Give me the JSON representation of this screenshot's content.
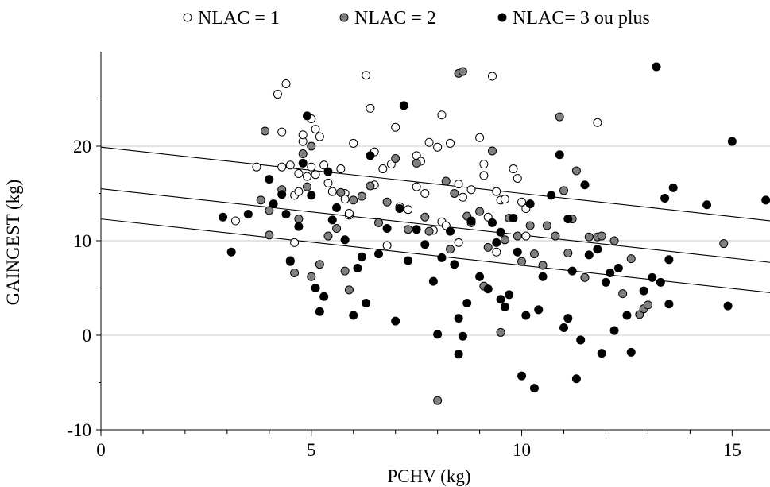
{
  "chart_data": {
    "type": "scatter",
    "title": "",
    "xlabel": "PCHV (kg)",
    "ylabel": "GAINGEST (kg)",
    "xlim": [
      0,
      15.9
    ],
    "ylim": [
      -10,
      30
    ],
    "xticks": [
      0,
      5,
      10,
      15
    ],
    "yticks": [
      -10,
      0,
      10,
      20
    ],
    "grid": "horizontal",
    "legend": "top",
    "series": [
      {
        "name": "NLAC = 1",
        "marker": "open-circle",
        "color": "#ffffff",
        "points": [
          [
            3.2,
            12.1
          ],
          [
            3.7,
            17.8
          ],
          [
            4.2,
            25.5
          ],
          [
            4.3,
            21.5
          ],
          [
            4.4,
            26.6
          ],
          [
            4.3,
            17.8
          ],
          [
            4.5,
            18.0
          ],
          [
            4.6,
            14.8
          ],
          [
            4.7,
            15.2
          ],
          [
            4.7,
            17.1
          ],
          [
            4.8,
            20.5
          ],
          [
            4.8,
            21.2
          ],
          [
            5.0,
            22.9
          ],
          [
            5.1,
            21.8
          ],
          [
            5.2,
            21.0
          ],
          [
            4.9,
            16.8
          ],
          [
            5.0,
            17.8
          ],
          [
            5.1,
            17.0
          ],
          [
            5.3,
            18.0
          ],
          [
            5.4,
            16.1
          ],
          [
            5.5,
            15.2
          ],
          [
            5.7,
            17.6
          ],
          [
            5.8,
            15.0
          ],
          [
            5.8,
            14.4
          ],
          [
            5.9,
            12.7
          ],
          [
            6.0,
            20.3
          ],
          [
            6.3,
            27.5
          ],
          [
            6.4,
            24.0
          ],
          [
            6.5,
            19.4
          ],
          [
            6.5,
            15.9
          ],
          [
            6.7,
            17.6
          ],
          [
            6.9,
            18.1
          ],
          [
            7.0,
            22.0
          ],
          [
            7.1,
            13.6
          ],
          [
            7.3,
            13.3
          ],
          [
            7.5,
            15.7
          ],
          [
            7.5,
            19.0
          ],
          [
            7.6,
            18.4
          ],
          [
            7.7,
            15.0
          ],
          [
            7.8,
            20.4
          ],
          [
            8.0,
            19.9
          ],
          [
            8.1,
            23.3
          ],
          [
            8.1,
            12.0
          ],
          [
            8.2,
            11.6
          ],
          [
            8.3,
            20.3
          ],
          [
            8.5,
            16.0
          ],
          [
            8.6,
            14.6
          ],
          [
            8.8,
            15.4
          ],
          [
            9.0,
            20.9
          ],
          [
            9.1,
            16.9
          ],
          [
            9.1,
            18.1
          ],
          [
            9.3,
            27.4
          ],
          [
            9.2,
            12.5
          ],
          [
            9.4,
            15.2
          ],
          [
            9.5,
            14.3
          ],
          [
            9.6,
            14.4
          ],
          [
            9.8,
            17.6
          ],
          [
            9.9,
            16.6
          ],
          [
            10.0,
            14.1
          ],
          [
            10.1,
            13.4
          ],
          [
            10.1,
            10.5
          ],
          [
            11.8,
            22.5
          ],
          [
            4.6,
            9.8
          ],
          [
            5.9,
            12.9
          ],
          [
            6.8,
            9.5
          ],
          [
            8.5,
            9.8
          ],
          [
            9.4,
            8.8
          ],
          [
            7.9,
            11.1
          ]
        ]
      },
      {
        "name": "NLAC = 2",
        "marker": "filled-circle",
        "color": "#808080",
        "points": [
          [
            3.8,
            14.3
          ],
          [
            3.9,
            21.6
          ],
          [
            4.0,
            10.6
          ],
          [
            4.0,
            13.2
          ],
          [
            4.3,
            15.4
          ],
          [
            4.5,
            7.9
          ],
          [
            4.6,
            6.6
          ],
          [
            4.7,
            12.3
          ],
          [
            4.8,
            19.2
          ],
          [
            4.9,
            15.7
          ],
          [
            5.0,
            20.0
          ],
          [
            5.0,
            6.2
          ],
          [
            5.2,
            7.5
          ],
          [
            5.4,
            10.5
          ],
          [
            5.6,
            11.3
          ],
          [
            5.7,
            15.1
          ],
          [
            5.8,
            6.8
          ],
          [
            5.9,
            4.8
          ],
          [
            6.0,
            14.3
          ],
          [
            6.2,
            14.7
          ],
          [
            6.4,
            15.8
          ],
          [
            6.6,
            11.9
          ],
          [
            6.8,
            14.1
          ],
          [
            7.0,
            18.7
          ],
          [
            7.3,
            11.2
          ],
          [
            7.5,
            18.2
          ],
          [
            7.7,
            12.5
          ],
          [
            7.8,
            11.0
          ],
          [
            8.0,
            -6.9
          ],
          [
            8.2,
            16.3
          ],
          [
            8.4,
            15.0
          ],
          [
            8.5,
            27.7
          ],
          [
            8.6,
            27.9
          ],
          [
            8.7,
            12.6
          ],
          [
            8.8,
            11.9
          ],
          [
            9.0,
            13.1
          ],
          [
            9.1,
            5.2
          ],
          [
            9.2,
            9.3
          ],
          [
            9.3,
            19.5
          ],
          [
            9.5,
            0.3
          ],
          [
            9.6,
            10.1
          ],
          [
            9.7,
            12.4
          ],
          [
            10.0,
            7.8
          ],
          [
            10.2,
            11.6
          ],
          [
            10.3,
            8.6
          ],
          [
            10.6,
            11.6
          ],
          [
            10.8,
            10.5
          ],
          [
            10.9,
            23.1
          ],
          [
            11.0,
            15.3
          ],
          [
            11.1,
            8.7
          ],
          [
            11.2,
            12.3
          ],
          [
            11.3,
            17.4
          ],
          [
            11.5,
            6.1
          ],
          [
            11.6,
            10.4
          ],
          [
            11.8,
            10.4
          ],
          [
            11.9,
            10.5
          ],
          [
            12.2,
            10.0
          ],
          [
            12.4,
            4.4
          ],
          [
            12.6,
            8.1
          ],
          [
            12.8,
            2.2
          ],
          [
            12.9,
            2.8
          ],
          [
            13.0,
            3.2
          ],
          [
            14.8,
            9.7
          ],
          [
            10.5,
            7.4
          ],
          [
            9.9,
            10.5
          ],
          [
            8.3,
            9.1
          ]
        ]
      },
      {
        "name": "NLAC= 3 ou plus",
        "marker": "filled-circle",
        "color": "#000000",
        "points": [
          [
            2.9,
            12.5
          ],
          [
            3.1,
            8.8
          ],
          [
            3.5,
            12.8
          ],
          [
            4.0,
            16.5
          ],
          [
            4.1,
            13.9
          ],
          [
            4.3,
            14.9
          ],
          [
            4.4,
            12.8
          ],
          [
            4.5,
            7.8
          ],
          [
            4.7,
            11.5
          ],
          [
            4.8,
            18.2
          ],
          [
            4.9,
            23.2
          ],
          [
            5.0,
            14.8
          ],
          [
            5.1,
            5.0
          ],
          [
            5.2,
            2.5
          ],
          [
            5.3,
            4.1
          ],
          [
            5.4,
            17.3
          ],
          [
            5.5,
            12.2
          ],
          [
            5.6,
            13.5
          ],
          [
            5.8,
            10.1
          ],
          [
            6.0,
            2.1
          ],
          [
            6.1,
            7.1
          ],
          [
            6.2,
            8.3
          ],
          [
            6.3,
            3.4
          ],
          [
            6.4,
            19.0
          ],
          [
            6.6,
            8.6
          ],
          [
            6.8,
            11.3
          ],
          [
            7.0,
            1.5
          ],
          [
            7.1,
            13.4
          ],
          [
            7.2,
            24.3
          ],
          [
            7.3,
            7.9
          ],
          [
            7.5,
            11.2
          ],
          [
            7.7,
            9.6
          ],
          [
            7.9,
            5.7
          ],
          [
            8.0,
            0.1
          ],
          [
            8.1,
            8.2
          ],
          [
            8.3,
            11.0
          ],
          [
            8.4,
            7.5
          ],
          [
            8.5,
            1.8
          ],
          [
            8.5,
            -2.0
          ],
          [
            8.6,
            -0.1
          ],
          [
            8.7,
            3.4
          ],
          [
            8.8,
            12.1
          ],
          [
            9.0,
            6.2
          ],
          [
            9.2,
            4.9
          ],
          [
            9.3,
            11.9
          ],
          [
            9.4,
            9.8
          ],
          [
            9.5,
            10.9
          ],
          [
            9.6,
            3.0
          ],
          [
            9.7,
            4.3
          ],
          [
            9.8,
            12.4
          ],
          [
            9.9,
            8.8
          ],
          [
            10.0,
            -4.3
          ],
          [
            10.1,
            2.1
          ],
          [
            10.2,
            13.9
          ],
          [
            10.3,
            -5.6
          ],
          [
            10.5,
            6.2
          ],
          [
            10.7,
            14.8
          ],
          [
            10.9,
            19.1
          ],
          [
            11.0,
            0.8
          ],
          [
            11.1,
            1.8
          ],
          [
            11.2,
            6.8
          ],
          [
            11.3,
            -4.6
          ],
          [
            11.4,
            -0.5
          ],
          [
            11.5,
            15.9
          ],
          [
            11.6,
            8.5
          ],
          [
            11.8,
            9.1
          ],
          [
            11.9,
            -1.9
          ],
          [
            12.0,
            5.6
          ],
          [
            12.2,
            0.5
          ],
          [
            12.3,
            7.1
          ],
          [
            12.5,
            2.1
          ],
          [
            12.6,
            -1.8
          ],
          [
            12.9,
            4.7
          ],
          [
            13.1,
            6.1
          ],
          [
            13.2,
            28.4
          ],
          [
            13.3,
            5.6
          ],
          [
            13.4,
            14.5
          ],
          [
            13.5,
            8.0
          ],
          [
            13.5,
            3.3
          ],
          [
            13.6,
            15.6
          ],
          [
            14.4,
            13.8
          ],
          [
            14.9,
            3.1
          ],
          [
            15.0,
            20.5
          ],
          [
            15.8,
            14.3
          ],
          [
            11.1,
            12.3
          ],
          [
            10.4,
            2.7
          ],
          [
            9.5,
            3.8
          ],
          [
            12.1,
            6.6
          ]
        ]
      }
    ],
    "regression_lines": [
      {
        "intercept": 19.9,
        "slope": -0.49
      },
      {
        "intercept": 15.5,
        "slope": -0.49
      },
      {
        "intercept": 12.3,
        "slope": -0.49
      }
    ]
  }
}
